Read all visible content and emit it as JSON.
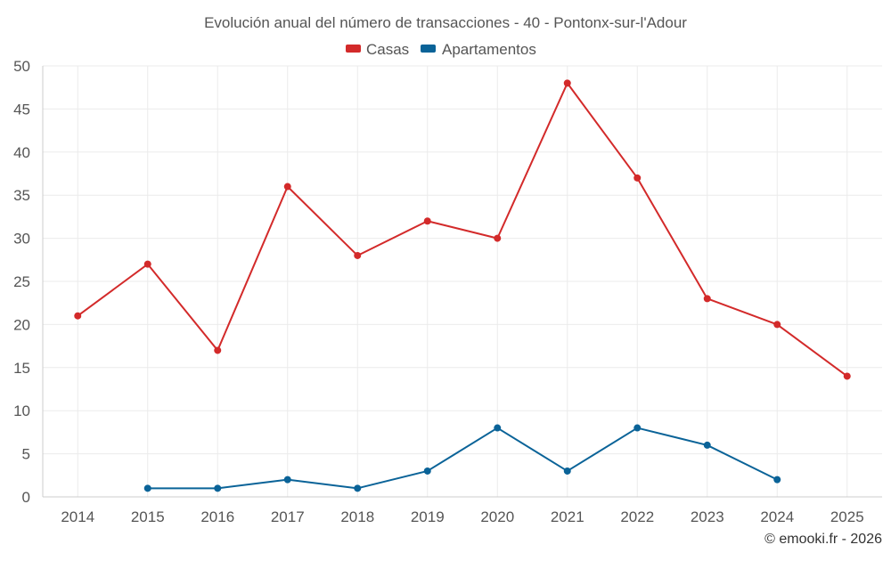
{
  "chart_data": {
    "type": "line",
    "title": "Evolución anual del número de transacciones - 40 - Pontonx-sur-l'Adour",
    "categories": [
      "2014",
      "2015",
      "2016",
      "2017",
      "2018",
      "2019",
      "2020",
      "2021",
      "2022",
      "2023",
      "2024",
      "2025"
    ],
    "ylim": [
      0,
      50
    ],
    "yticks": [
      0,
      5,
      10,
      15,
      20,
      25,
      30,
      35,
      40,
      45,
      50
    ],
    "grid": true,
    "legend_position": "top-center",
    "series": [
      {
        "name": "Casas",
        "color": "#d32a2a",
        "values": [
          21,
          27,
          17,
          36,
          28,
          32,
          30,
          48,
          37,
          23,
          20,
          14
        ]
      },
      {
        "name": "Apartamentos",
        "color": "#0a6398",
        "values": [
          null,
          1,
          1,
          2,
          1,
          3,
          8,
          3,
          8,
          6,
          2,
          null
        ]
      }
    ]
  },
  "credit": "© emooki.fr - 2026"
}
